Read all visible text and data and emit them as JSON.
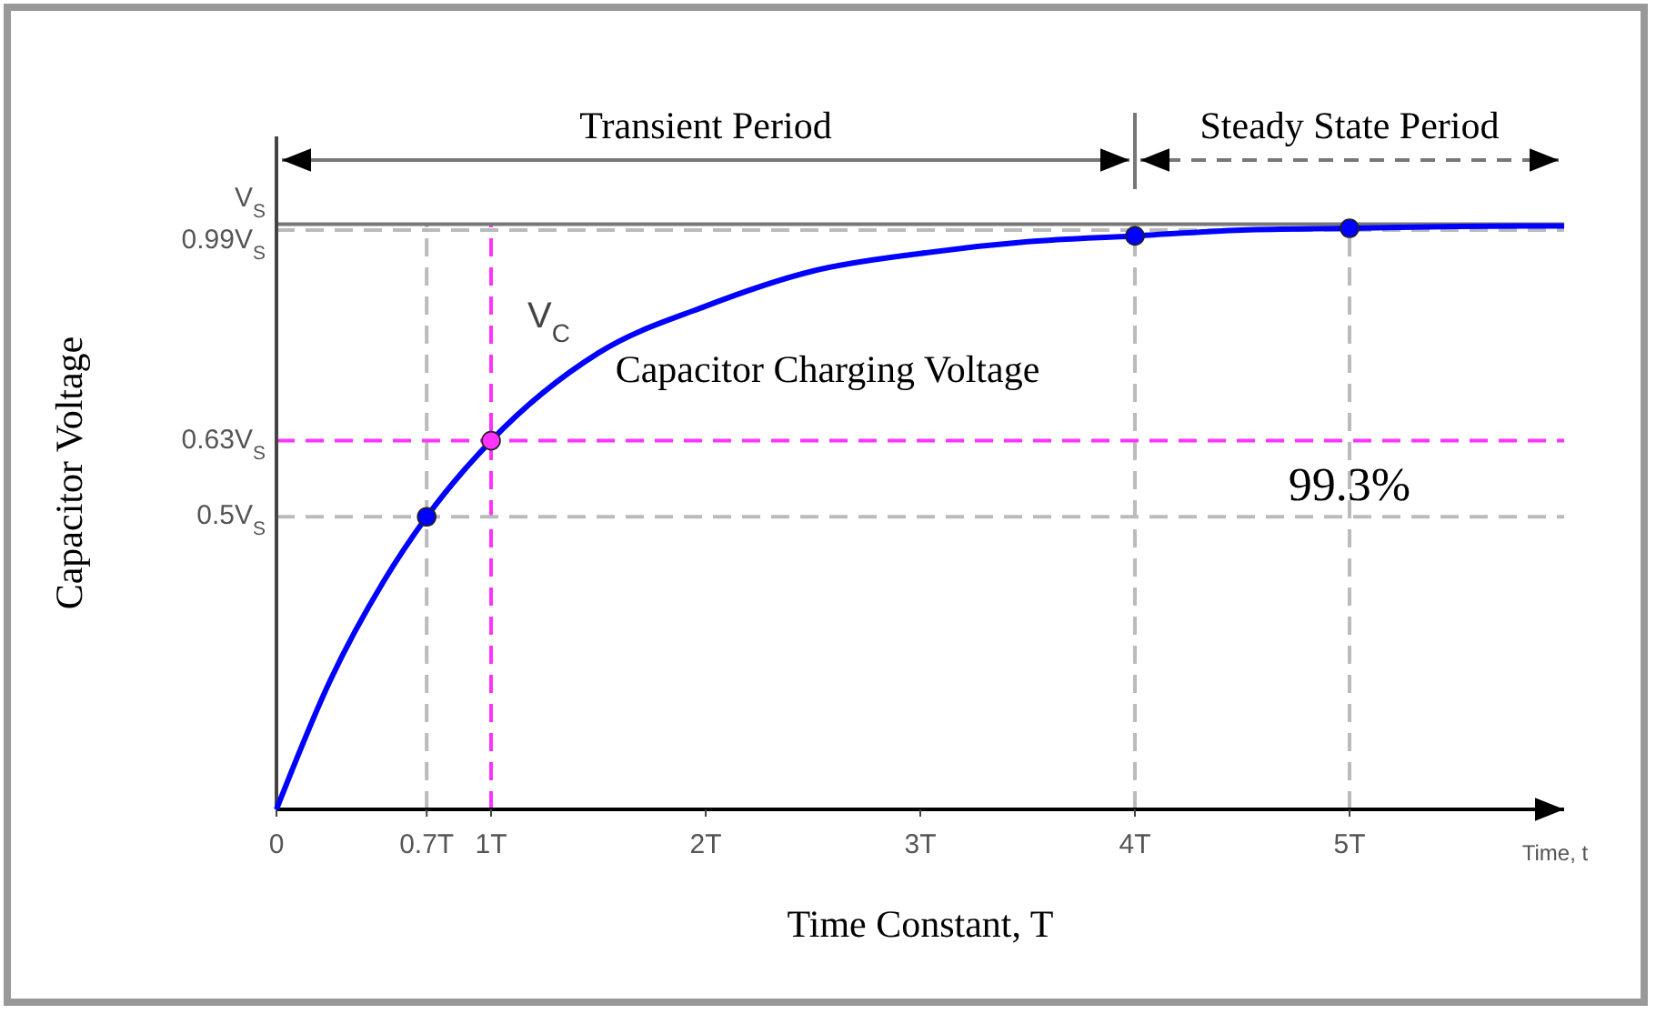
{
  "chart_data": {
    "type": "line",
    "xlabel": "Time Constant, T",
    "ylabel": "Capacitor Voltage",
    "x": [
      0,
      0.25,
      0.5,
      0.7,
      1,
      1.5,
      2,
      2.5,
      3,
      3.5,
      4,
      4.5,
      5,
      5.5,
      6
    ],
    "series": [
      {
        "type": "line",
        "color": "#0000ff",
        "marker": "none",
        "values": [
          0,
          0.22,
          0.39,
          0.5,
          0.63,
          0.78,
          0.86,
          0.92,
          0.95,
          0.97,
          0.98,
          0.99,
          0.993,
          0.996,
          0.997
        ]
      },
      {
        "type": "scatter",
        "marker": "circle",
        "x": [
          0.7,
          1,
          4,
          5
        ],
        "colors": [
          "#0000ff",
          "#ff33ff",
          "#0000ff",
          "#0000ff"
        ],
        "values": [
          0.5,
          0.63,
          0.98,
          0.993
        ]
      }
    ],
    "xlim": [
      0,
      6
    ],
    "xticks": [
      0,
      {
        "value": 0.7,
        "label": "0.7T"
      },
      {
        "value": 1,
        "label": "1T"
      },
      {
        "value": 2,
        "label": "2T"
      },
      {
        "value": 3,
        "label": "3T"
      },
      {
        "value": 4,
        "label": "4T"
      },
      {
        "value": 5,
        "label": "5T"
      }
    ],
    "ylim": [
      0,
      1.15
    ],
    "yticks": [
      {
        "value": 0.5,
        "label": "0.5V$_{S}$"
      },
      {
        "value": 0.63,
        "label": "0.63V$_{S}$"
      },
      {
        "value": 0.99,
        "label": "0.99V$_{S}$"
      }
    ],
    "ref_lines": [
      {
        "axis": "x",
        "value": 0.7,
        "color": "#bbbbbb",
        "line_style": "dashed"
      },
      {
        "axis": "x",
        "value": 1,
        "color": "#ff33ff",
        "line_style": "dashed"
      },
      {
        "axis": "x",
        "value": 4,
        "color": "#bbbbbb",
        "line_style": "dashed"
      },
      {
        "axis": "x",
        "value": 5,
        "color": "#bbbbbb",
        "line_style": "dashed"
      },
      {
        "axis": "y",
        "value": 0.5,
        "color": "#bbbbbb",
        "line_style": "dashed"
      },
      {
        "axis": "y",
        "value": 0.63,
        "color": "#ff33ff",
        "line_style": "dashed"
      },
      {
        "axis": "y",
        "value": 0.99,
        "color": "#bbbbbb",
        "line_style": "dashed"
      },
      {
        "axis": "y",
        "value": 1,
        "color": "#777777",
        "line_style": "solid",
        "label": "V$_{S}$"
      }
    ],
    "annotations": [
      "V$_{C}$",
      "Capacitor Charging Voltage",
      "99.3%",
      "Time, t",
      "Transient Period",
      "Steady State Period"
    ],
    "grid": false
  }
}
